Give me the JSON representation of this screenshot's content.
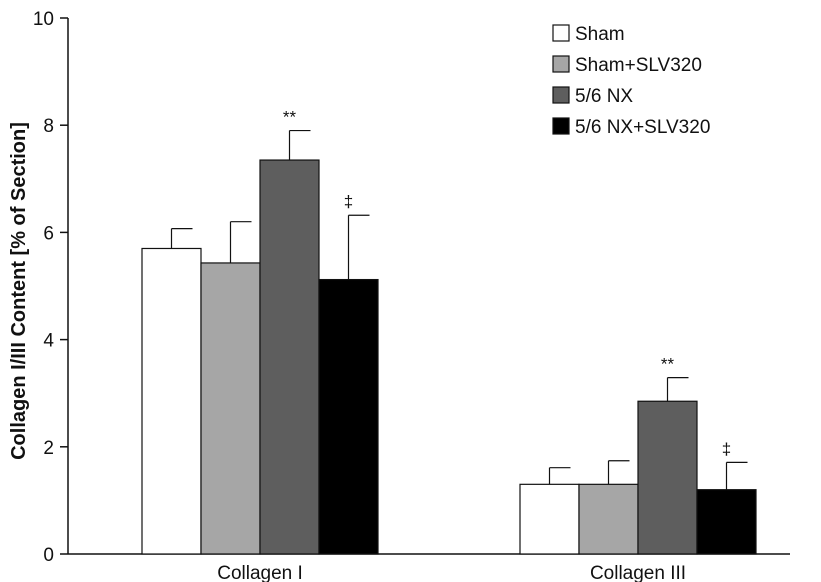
{
  "chart_data": {
    "type": "bar",
    "title": "",
    "xlabel": "",
    "ylabel": "Collagen I/III Content [% of Section]",
    "ylim": [
      0,
      10
    ],
    "yticks": [
      0,
      2,
      4,
      6,
      8,
      10
    ],
    "categories": [
      "Collagen I",
      "Collagen III"
    ],
    "grid": false,
    "legend_position": "top-right",
    "series": [
      {
        "name": "Sham",
        "color": "#ffffff",
        "values": [
          5.7,
          1.3
        ],
        "errors": [
          0.37,
          0.31
        ],
        "annotations": [
          "",
          ""
        ]
      },
      {
        "name": "Sham+SLV320",
        "color": "#a6a6a6",
        "values": [
          5.43,
          1.3
        ],
        "errors": [
          0.77,
          0.44
        ],
        "annotations": [
          "",
          ""
        ]
      },
      {
        "name": "5/6 NX",
        "color": "#5e5e5e",
        "values": [
          7.35,
          2.85
        ],
        "errors": [
          0.55,
          0.44
        ],
        "annotations": [
          "**",
          "**"
        ]
      },
      {
        "name": "5/6 NX+SLV320",
        "color": "#000000",
        "values": [
          5.12,
          1.2
        ],
        "errors": [
          1.2,
          0.51
        ],
        "annotations": [
          "‡",
          "‡"
        ]
      }
    ]
  }
}
